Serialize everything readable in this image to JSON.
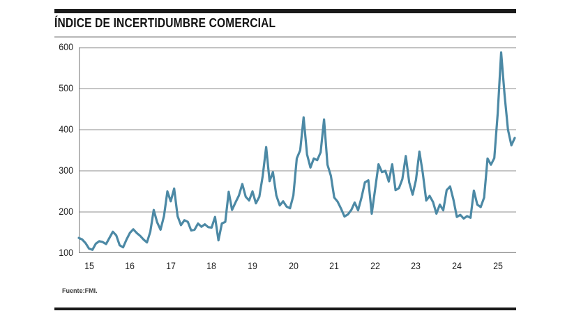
{
  "header": {
    "title": "ÍNDICE DE INCERTIDUMBRE COMERCIAL"
  },
  "footer": {
    "source": "Fuente:FMI."
  },
  "colors": {
    "line": "#4c89a5",
    "grid": "#a3a3a3",
    "axis": "#8a8a8a",
    "bar": "#1a1a1a",
    "rule": "#b7b7b7",
    "tick_text": "#1f1f1f"
  },
  "chart_data": {
    "type": "line",
    "title": "ÍNDICE DE INCERTIDUMBRE COMERCIAL",
    "source": "Fuente:FMI.",
    "x_tick_labels": [
      "15",
      "16",
      "17",
      "18",
      "19",
      "20",
      "21",
      "22",
      "23",
      "24",
      "25"
    ],
    "x_tick_years": [
      2015,
      2016,
      2017,
      2018,
      2019,
      2020,
      2021,
      2022,
      2023,
      2024,
      2025
    ],
    "x_domain": [
      2014.75,
      2025.45
    ],
    "y_ticks": [
      100,
      200,
      300,
      400,
      500,
      600
    ],
    "ylim": [
      100,
      600
    ],
    "grid": "horizontal",
    "legend": "none",
    "series": [
      {
        "name": "Índice de incertidumbre comercial",
        "start": "2014-10",
        "frequency": "monthly",
        "values": [
          137,
          133,
          124,
          111,
          108,
          123,
          129,
          127,
          122,
          137,
          152,
          143,
          119,
          114,
          133,
          149,
          158,
          149,
          142,
          133,
          126,
          152,
          205,
          175,
          157,
          190,
          250,
          226,
          257,
          190,
          168,
          180,
          176,
          155,
          157,
          172,
          164,
          170,
          163,
          162,
          188,
          131,
          172,
          176,
          249,
          205,
          223,
          240,
          268,
          237,
          228,
          250,
          221,
          237,
          288,
          358,
          275,
          297,
          240,
          216,
          226,
          213,
          209,
          240,
          330,
          350,
          430,
          340,
          308,
          330,
          326,
          345,
          425,
          315,
          288,
          235,
          225,
          208,
          189,
          194,
          205,
          223,
          204,
          235,
          272,
          277,
          196,
          255,
          316,
          297,
          300,
          274,
          316,
          253,
          258,
          280,
          336,
          272,
          242,
          278,
          347,
          294,
          228,
          239,
          224,
          196,
          218,
          204,
          253,
          262,
          230,
          188,
          193,
          184,
          190,
          186,
          252,
          218,
          212,
          235,
          330,
          315,
          331,
          440,
          588,
          485,
          400,
          362,
          380
        ]
      }
    ]
  }
}
